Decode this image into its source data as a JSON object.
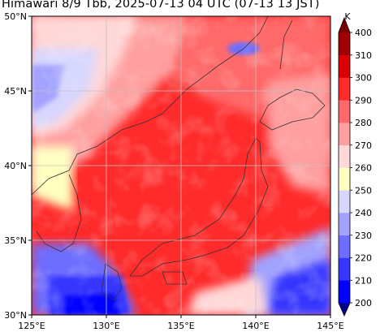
{
  "title": "Himawari 8/9 Tbb, 2025-07-13 04 UTC (07-13 13 JST)",
  "map": {
    "lon_range": [
      125,
      145
    ],
    "lat_range": [
      30,
      50
    ],
    "lon_ticks": [
      "125°E",
      "130°E",
      "135°E",
      "140°E",
      "145°E"
    ],
    "lat_ticks": [
      "30°N",
      "35°N",
      "40°N",
      "45°N",
      "50°N"
    ],
    "grid": true
  },
  "colorbar": {
    "unit": "K",
    "levels": [
      "200",
      "210",
      "220",
      "230",
      "240",
      "250",
      "260",
      "270",
      "280",
      "290",
      "300",
      "310",
      "400"
    ],
    "colors": [
      "#00008b",
      "#0000ff",
      "#3636ff",
      "#6d6dff",
      "#a3a3ff",
      "#d6d6ff",
      "#ffffbf",
      "#ffd8d8",
      "#ff9f9f",
      "#ff6969",
      "#ff2a2a",
      "#dd0000",
      "#a00000",
      "#7a0000"
    ]
  }
}
